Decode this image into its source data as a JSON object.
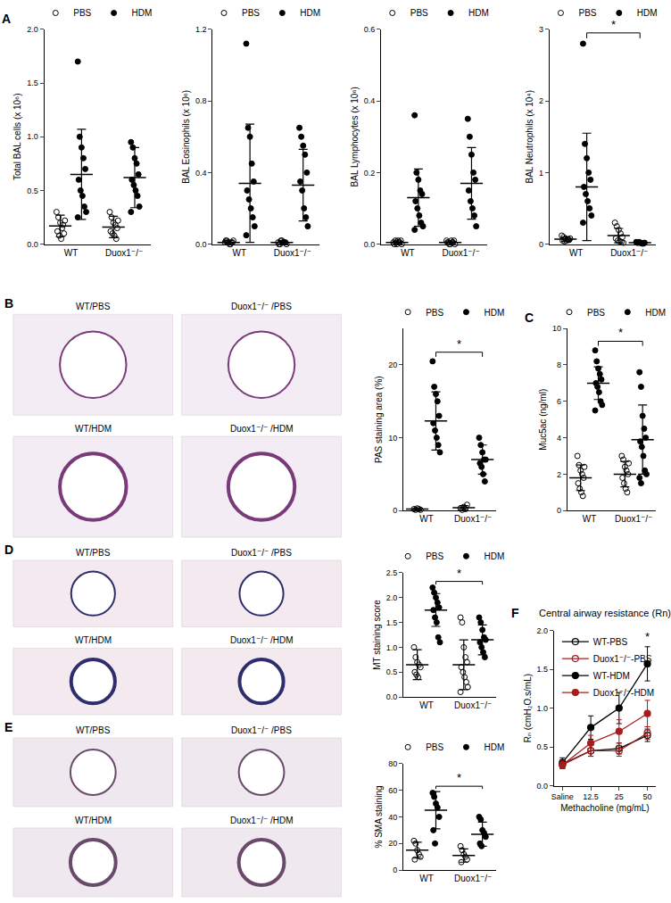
{
  "chart_data": [
    {
      "type": "scatter",
      "panel_label": "A",
      "y_label": "Total BAL cells (x 10⁶)",
      "categories": [
        "WT",
        "Duox1⁻/⁻"
      ],
      "ylim": [
        0,
        2
      ],
      "yticks": [
        {
          "value": 0,
          "label": "0.0"
        },
        0.5,
        {
          "value": 1,
          "label": "1.0"
        },
        1.5,
        {
          "value": 2,
          "label": "2.0"
        }
      ],
      "grid": false,
      "legend": "top",
      "series": [
        {
          "name": "PBS",
          "color": "#000000",
          "marker": "open circle",
          "values": [
            [
              0.3,
              0.25,
              0.2,
              0.15,
              0.1,
              0.12,
              0.08,
              0.05,
              0.18,
              0.22
            ],
            [
              0.3,
              0.25,
              0.2,
              0.18,
              0.15,
              0.12,
              0.1,
              0.08,
              0.05,
              0.22
            ]
          ],
          "mean": [
            0.17,
            0.16
          ],
          "errors": [
            0.1,
            0.1
          ]
        },
        {
          "name": "HDM",
          "color": "#000000",
          "marker": "circle",
          "values": [
            [
              1.7,
              1.0,
              0.9,
              0.8,
              0.7,
              0.6,
              0.5,
              0.45,
              0.35,
              0.3,
              0.25
            ],
            [
              0.95,
              0.9,
              0.8,
              0.75,
              0.65,
              0.6,
              0.55,
              0.5,
              0.45,
              0.35,
              0.3
            ]
          ],
          "mean": [
            0.65,
            0.62
          ],
          "errors": [
            0.42,
            0.28
          ]
        }
      ]
    },
    {
      "type": "scatter",
      "y_label": "BAL Eosinophils (x 10⁶)",
      "categories": [
        "WT",
        "Duox1⁻/⁻"
      ],
      "ylim": [
        0,
        1.2
      ],
      "yticks": [
        {
          "value": 0,
          "label": "0.0"
        },
        0.4,
        0.8,
        1.2
      ],
      "grid": false,
      "legend": "top",
      "series": [
        {
          "name": "PBS",
          "color": "#000000",
          "marker": "open circle",
          "values": [
            [
              0.01,
              0.02,
              0.01,
              0.0,
              0.01,
              0.02,
              0.01,
              0.0,
              0.01,
              0.02
            ],
            [
              0.01,
              0.0,
              0.02,
              0.01,
              0.01,
              0.0,
              0.02,
              0.01,
              0.01,
              0.0
            ]
          ],
          "mean": [
            0.01,
            0.01
          ],
          "errors": [
            0.01,
            0.01
          ]
        },
        {
          "name": "HDM",
          "color": "#000000",
          "marker": "circle",
          "values": [
            [
              1.12,
              0.65,
              0.6,
              0.45,
              0.35,
              0.3,
              0.25,
              0.2,
              0.15,
              0.1,
              0.05
            ],
            [
              0.65,
              0.6,
              0.55,
              0.5,
              0.4,
              0.35,
              0.3,
              0.2,
              0.15,
              0.1
            ]
          ],
          "mean": [
            0.34,
            0.33
          ],
          "errors": [
            0.33,
            0.2
          ]
        }
      ]
    },
    {
      "type": "scatter",
      "y_label": "BAL Lymphocytes (x 10⁶)",
      "categories": [
        "WT",
        "Duox1⁻/⁻"
      ],
      "ylim": [
        0,
        0.6
      ],
      "yticks": [
        {
          "value": 0,
          "label": "0.0"
        },
        0.2,
        0.4,
        0.6
      ],
      "grid": false,
      "legend": "top",
      "series": [
        {
          "name": "PBS",
          "color": "#000000",
          "marker": "open circle",
          "values": [
            [
              0.005,
              0.01,
              0.0,
              0.005,
              0.01,
              0.0,
              0.005,
              0.01,
              0.005,
              0.0
            ],
            [
              0.01,
              0.005,
              0.0,
              0.005,
              0.01,
              0.005,
              0.0,
              0.01,
              0.005,
              0.0
            ]
          ],
          "mean": [
            0.005,
            0.005
          ],
          "errors": [
            0.004,
            0.004
          ]
        },
        {
          "name": "HDM",
          "color": "#000000",
          "marker": "circle",
          "values": [
            [
              0.36,
              0.2,
              0.18,
              0.15,
              0.14,
              0.12,
              0.1,
              0.08,
              0.06,
              0.05,
              0.04
            ],
            [
              0.35,
              0.3,
              0.25,
              0.2,
              0.18,
              0.15,
              0.12,
              0.1,
              0.08,
              0.05
            ]
          ],
          "mean": [
            0.13,
            0.17
          ],
          "errors": [
            0.08,
            0.1
          ]
        }
      ]
    },
    {
      "type": "scatter",
      "y_label": "BAL Neutrophils (x 10⁴)",
      "categories": [
        "WT",
        "Duox1⁻/⁻"
      ],
      "ylim": [
        0,
        3
      ],
      "yticks": [
        0,
        1,
        2,
        3
      ],
      "grid": false,
      "legend": "top",
      "annotations": [
        {
          "text": "*",
          "between": [
            "WT",
            "Duox1⁻/⁻"
          ],
          "series": "HDM"
        }
      ],
      "series": [
        {
          "name": "PBS",
          "color": "#000000",
          "marker": "open circle",
          "values": [
            [
              0.12,
              0.1,
              0.08,
              0.07,
              0.06,
              0.05,
              0.04,
              0.05,
              0.06,
              0.08
            ],
            [
              0.3,
              0.25,
              0.2,
              0.15,
              0.1,
              0.08,
              0.05,
              0.04,
              0.03,
              0.02
            ]
          ],
          "mean": [
            0.07,
            0.12
          ],
          "errors": [
            0.03,
            0.1
          ]
        },
        {
          "name": "HDM",
          "color": "#000000",
          "marker": "circle",
          "values": [
            [
              2.8,
              1.4,
              1.2,
              1.0,
              0.9,
              0.8,
              0.7,
              0.6,
              0.5,
              0.4,
              0.3
            ],
            [
              0.03,
              0.02,
              0.02,
              0.01,
              0.01,
              0.02,
              0.03,
              0.02,
              0.01,
              0.02
            ]
          ],
          "mean": [
            0.8,
            0.02
          ],
          "errors": [
            0.75,
            0.01
          ]
        }
      ]
    },
    {
      "type": "scatter",
      "y_label": "PAS staining area (%)",
      "categories": [
        "WT",
        "Duox1⁻/⁻"
      ],
      "ylim": [
        0,
        25
      ],
      "yticks": [
        0,
        10,
        20
      ],
      "grid": false,
      "legend": "top",
      "annotations": [
        {
          "text": "*",
          "between": [
            "WT",
            "Duox1⁻/⁻"
          ],
          "series": "HDM"
        }
      ],
      "series": [
        {
          "name": "PBS",
          "color": "#000000",
          "marker": "open circle",
          "values": [
            [
              0.2,
              0.1,
              0.3,
              0.2,
              0.1
            ],
            [
              0.3,
              0.1,
              0.5,
              0.2,
              0.8
            ]
          ],
          "mean": [
            0.2,
            0.4
          ],
          "errors": [
            0.08,
            0.27
          ]
        },
        {
          "name": "HDM",
          "color": "#000000",
          "marker": "circle",
          "values": [
            [
              20.5,
              17,
              16,
              15,
              13,
              12,
              11,
              10,
              9,
              8
            ],
            [
              10,
              9,
              8,
              7,
              7,
              6.5,
              6,
              5,
              4
            ]
          ],
          "mean": [
            12.3,
            7
          ],
          "errors": [
            4,
            2
          ]
        }
      ]
    },
    {
      "type": "scatter",
      "panel_label": "C",
      "y_label": "Muc5ac (ng/ml)",
      "categories": [
        "WT",
        "Duox1⁻/⁻"
      ],
      "ylim": [
        0,
        10
      ],
      "yticks": [
        0,
        2,
        4,
        6,
        8,
        10
      ],
      "grid": false,
      "legend": "top",
      "annotations": [
        {
          "text": "*",
          "between": [
            "WT",
            "Duox1⁻/⁻"
          ],
          "series": "HDM"
        }
      ],
      "series": [
        {
          "name": "PBS",
          "color": "#000000",
          "marker": "open circle",
          "values": [
            [
              3,
              2.5,
              2.2,
              2,
              1.8,
              1.5,
              1.2,
              1,
              0.8,
              2.4
            ],
            [
              3,
              2.8,
              2.4,
              2.2,
              2,
              1.8,
              1.5,
              1.2,
              1,
              2.6
            ]
          ],
          "mean": [
            1.8,
            2
          ],
          "errors": [
            0.7,
            0.7
          ]
        },
        {
          "name": "HDM",
          "color": "#000000",
          "marker": "circle",
          "values": [
            [
              8.8,
              8.2,
              7.8,
              7.5,
              7.2,
              7,
              6.8,
              6.5,
              6,
              5.8,
              5.5
            ],
            [
              7.6,
              6.8,
              5.2,
              4.5,
              4,
              3.8,
              3.5,
              3,
              2.2,
              2,
              1.8,
              1.5
            ]
          ],
          "mean": [
            7,
            3.9
          ],
          "errors": [
            0.9,
            1.9
          ]
        }
      ]
    },
    {
      "type": "scatter",
      "y_label": "MT staining score",
      "categories": [
        "WT",
        "Duox1⁻/⁻"
      ],
      "ylim": [
        0,
        2.5
      ],
      "yticks": [
        {
          "value": 0,
          "label": "0.0"
        },
        0.5,
        {
          "value": 1,
          "label": "1.0"
        },
        1.5,
        {
          "value": 2,
          "label": "2.0"
        },
        2.5
      ],
      "grid": false,
      "legend": "top",
      "annotations": [
        {
          "text": "*",
          "between": [
            "WT",
            "Duox1⁻/⁻"
          ],
          "series": "HDM"
        }
      ],
      "series": [
        {
          "name": "PBS",
          "color": "#000000",
          "marker": "open circle",
          "values": [
            [
              1.0,
              0.8,
              0.7,
              0.65,
              0.6,
              0.5,
              0.45,
              0.4
            ],
            [
              1.6,
              1.5,
              1.0,
              0.8,
              0.7,
              0.6,
              0.5,
              0.4,
              0.3,
              0.2,
              0.1
            ]
          ],
          "mean": [
            0.65,
            0.65
          ],
          "errors": [
            0.3,
            0.5
          ]
        },
        {
          "name": "HDM",
          "color": "#000000",
          "marker": "circle",
          "values": [
            [
              2.2,
              2.1,
              2.0,
              1.9,
              1.8,
              1.75,
              1.6,
              1.5,
              1.2,
              1.1
            ],
            [
              1.6,
              1.5,
              1.35,
              1.2,
              1.15,
              1.1,
              1.0,
              0.9,
              0.8
            ]
          ],
          "mean": [
            1.75,
            1.15
          ],
          "errors": [
            0.33,
            0.3
          ]
        }
      ]
    },
    {
      "type": "scatter",
      "y_label": "% SMA staining",
      "categories": [
        "WT",
        "Duox1⁻/⁻"
      ],
      "ylim": [
        0,
        80
      ],
      "yticks": [
        0,
        20,
        40,
        60,
        80
      ],
      "grid": false,
      "legend": "top",
      "annotations": [
        {
          "text": "*",
          "between": [
            "WT",
            "Duox1⁻/⁻"
          ],
          "series": "HDM"
        }
      ],
      "series": [
        {
          "name": "PBS",
          "color": "#000000",
          "marker": "open circle",
          "values": [
            [
              22,
              20,
              15,
              12,
              10,
              8
            ],
            [
              18,
              15,
              12,
              10,
              8,
              6
            ]
          ],
          "mean": [
            15,
            11
          ],
          "errors": [
            6,
            5
          ]
        },
        {
          "name": "HDM",
          "color": "#000000",
          "marker": "circle",
          "values": [
            [
              58,
              55,
              50,
              47,
              40,
              30,
              20
            ],
            [
              40,
              38,
              30,
              28,
              25,
              20,
              18
            ]
          ],
          "mean": [
            45,
            27
          ],
          "errors": [
            14,
            9
          ]
        }
      ]
    },
    {
      "type": "line",
      "panel_label": "F",
      "title": "Central airway resistance (Rn)",
      "x_label": "Methacholine (mg/mL)",
      "y_label": "Rₙ (cmH₂O.s/mL)",
      "categories": [
        "Saline",
        "12.5",
        "25",
        "50"
      ],
      "ylim": [
        0,
        2
      ],
      "yticks": [
        {
          "value": 0,
          "label": "0.0"
        },
        0.5,
        {
          "value": 1,
          "label": "1.0"
        },
        1.5,
        {
          "value": 2,
          "label": "2.0"
        }
      ],
      "grid": false,
      "legend": "top left",
      "annotations": [
        {
          "text": "*",
          "category": "50"
        }
      ],
      "series": [
        {
          "name": "WT-PBS",
          "color": "#000000",
          "marker": "open circle",
          "values": [
            0.28,
            0.45,
            0.48,
            0.65
          ],
          "errors": [
            0.05,
            0.07,
            0.07,
            0.08
          ]
        },
        {
          "name": "Duox1⁻/⁻-PBS",
          "color": "#a51c1c",
          "marker": "open circle",
          "values": [
            0.27,
            0.45,
            0.45,
            0.68
          ],
          "errors": [
            0.05,
            0.07,
            0.07,
            0.08
          ]
        },
        {
          "name": "WT-HDM",
          "color": "#000000",
          "marker": "circle",
          "values": [
            0.3,
            0.75,
            1.0,
            1.57
          ],
          "errors": [
            0.06,
            0.15,
            0.2,
            0.22
          ]
        },
        {
          "name": "Duox1⁻/⁻-HDM",
          "color": "#a51c1c",
          "marker": "circle",
          "values": [
            0.27,
            0.55,
            0.7,
            0.93
          ],
          "errors": [
            0.05,
            0.1,
            0.15,
            0.17
          ]
        }
      ]
    }
  ],
  "micrographs": [
    {
      "panel_label": "B",
      "labels": [
        "WT/PBS",
        "Duox1⁻/⁻ /PBS",
        "WT/HDM",
        "Duox1⁻/⁻ /HDM"
      ]
    },
    {
      "panel_label": "D",
      "labels": [
        "WT/PBS",
        "Duox1⁻/⁻ /PBS",
        "WT/HDM",
        "Duox1⁻/⁻ /HDM"
      ]
    },
    {
      "panel_label": "E",
      "labels": [
        "WT/PBS",
        "Duox1⁻/⁻ /PBS",
        "WT/HDM",
        "Duox1⁻/⁻ /HDM"
      ]
    }
  ]
}
